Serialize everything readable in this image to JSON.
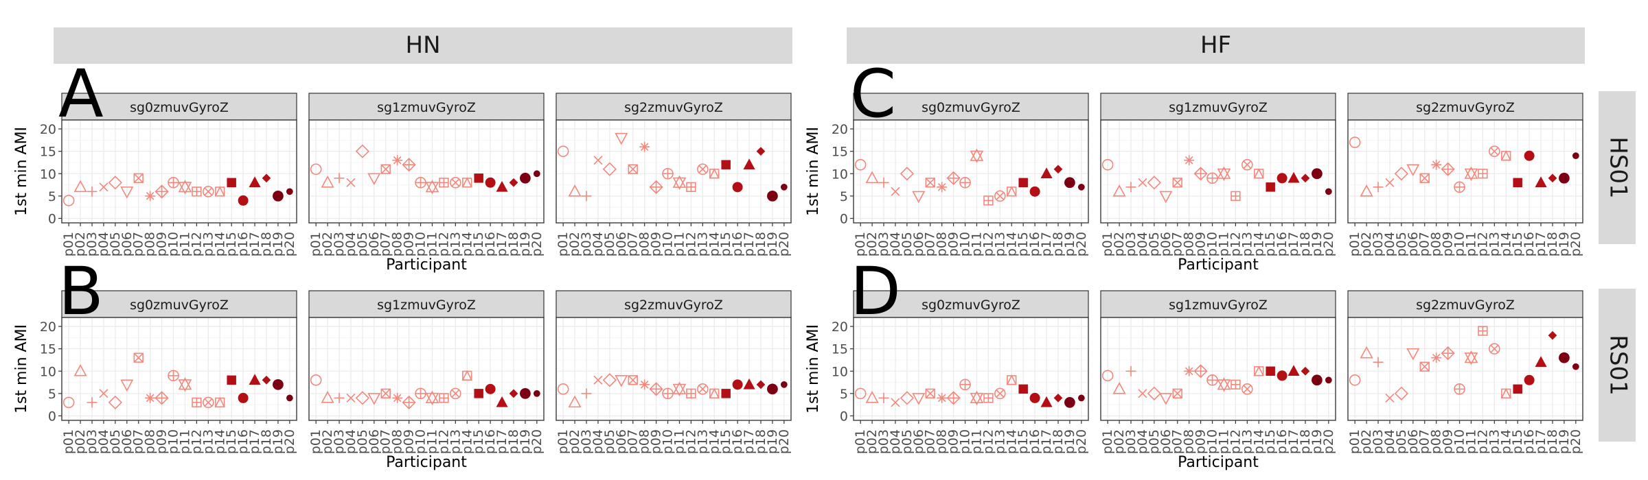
{
  "columns": [
    "HN",
    "HF"
  ],
  "rows": [
    "HS01",
    "RS01"
  ],
  "sub_panels": [
    "sg0zmuvGyroZ",
    "sg1zmuvGyroZ",
    "sg2zmuvGyroZ"
  ],
  "panel_letters": [
    "A",
    "B",
    "C",
    "D"
  ],
  "colors": {
    "light": "#f4877b",
    "mid": "#b40f14",
    "dark": "#7a0012",
    "strip": "#d9d9d9"
  },
  "chart_data": {
    "type": "scatter",
    "xlabel": "Participant",
    "ylabel": "1st min AMI",
    "ylim": [
      -1,
      22
    ],
    "yticks": [
      0,
      5,
      10,
      15,
      20
    ],
    "grid": true,
    "participants": [
      "p01",
      "p02",
      "p03",
      "p04",
      "p05",
      "p06",
      "p07",
      "p08",
      "p09",
      "p10",
      "p11",
      "p12",
      "p13",
      "p14",
      "p15",
      "p16",
      "p17",
      "p18",
      "p19",
      "p20"
    ],
    "shapes": [
      "open-circle",
      "open-triangle",
      "plus",
      "cross",
      "open-diamond",
      "open-down-triangle",
      "boxed-x",
      "asterisk",
      "diamond-plus",
      "circle-plus",
      "star-of-david",
      "boxed-plus",
      "circle-x",
      "square-triangle",
      "filled-square",
      "filled-circle",
      "filled-triangle",
      "filled-diamond",
      "large-filled-circle",
      "small-filled-circle"
    ],
    "panels": [
      {
        "letter": "A",
        "column": "HN",
        "row": "HS01",
        "sub": "sg0zmuvGyroZ",
        "values": [
          4,
          7,
          6,
          7,
          8,
          6,
          9,
          5,
          6,
          8,
          7,
          6,
          6,
          6,
          8,
          4,
          8,
          9,
          5,
          6
        ]
      },
      {
        "letter": "A",
        "column": "HN",
        "row": "HS01",
        "sub": "sg1zmuvGyroZ",
        "values": [
          11,
          8,
          9,
          8,
          15,
          9,
          11,
          13,
          12,
          8,
          7,
          8,
          8,
          8,
          9,
          8,
          7,
          8,
          9,
          10
        ]
      },
      {
        "letter": "A",
        "column": "HN",
        "row": "HS01",
        "sub": "sg2zmuvGyroZ",
        "values": [
          15,
          6,
          5,
          13,
          11,
          18,
          11,
          16,
          7,
          10,
          8,
          7,
          11,
          10,
          12,
          7,
          12,
          15,
          5,
          7
        ]
      },
      {
        "letter": "B",
        "column": "HN",
        "row": "RS01",
        "sub": "sg0zmuvGyroZ",
        "values": [
          3,
          10,
          3,
          5,
          3,
          7,
          13,
          4,
          4,
          9,
          7,
          3,
          3,
          3,
          8,
          4,
          8,
          8,
          7,
          4
        ]
      },
      {
        "letter": "B",
        "column": "HN",
        "row": "RS01",
        "sub": "sg1zmuvGyroZ",
        "values": [
          8,
          4,
          4,
          4,
          4,
          4,
          5,
          4,
          3,
          5,
          4,
          4,
          5,
          9,
          5,
          6,
          3,
          5,
          5,
          5
        ]
      },
      {
        "letter": "B",
        "column": "HN",
        "row": "RS01",
        "sub": "sg2zmuvGyroZ",
        "values": [
          6,
          3,
          5,
          8,
          8,
          8,
          8,
          7,
          6,
          5,
          6,
          5,
          6,
          5,
          5,
          7,
          7,
          7,
          6,
          7
        ]
      },
      {
        "letter": "C",
        "column": "HF",
        "row": "HS01",
        "sub": "sg0zmuvGyroZ",
        "values": [
          12,
          9,
          8,
          6,
          10,
          5,
          8,
          7,
          9,
          8,
          14,
          4,
          5,
          6,
          8,
          6,
          10,
          11,
          8,
          7
        ]
      },
      {
        "letter": "C",
        "column": "HF",
        "row": "HS01",
        "sub": "sg1zmuvGyroZ",
        "values": [
          12,
          6,
          7,
          8,
          8,
          5,
          8,
          13,
          10,
          9,
          10,
          5,
          12,
          10,
          7,
          9,
          9,
          9,
          10,
          6
        ]
      },
      {
        "letter": "C",
        "column": "HF",
        "row": "HS01",
        "sub": "sg2zmuvGyroZ",
        "values": [
          17,
          6,
          7,
          8,
          10,
          11,
          9,
          12,
          11,
          7,
          10,
          10,
          15,
          14,
          8,
          14,
          8,
          9,
          9,
          14
        ]
      },
      {
        "letter": "D",
        "column": "HF",
        "row": "RS01",
        "sub": "sg0zmuvGyroZ",
        "values": [
          5,
          4,
          4,
          3,
          4,
          4,
          5,
          4,
          4,
          7,
          4,
          4,
          5,
          8,
          6,
          4,
          3,
          4,
          3,
          4
        ]
      },
      {
        "letter": "D",
        "column": "HF",
        "row": "RS01",
        "sub": "sg1zmuvGyroZ",
        "values": [
          9,
          6,
          10,
          5,
          5,
          4,
          5,
          10,
          10,
          8,
          7,
          7,
          6,
          10,
          10,
          9,
          10,
          10,
          8,
          8
        ]
      },
      {
        "letter": "D",
        "column": "HF",
        "row": "RS01",
        "sub": "sg2zmuvGyroZ",
        "values": [
          8,
          14,
          12,
          4,
          5,
          14,
          11,
          13,
          14,
          6,
          13,
          19,
          15,
          5,
          6,
          8,
          12,
          18,
          13,
          11
        ]
      }
    ]
  }
}
